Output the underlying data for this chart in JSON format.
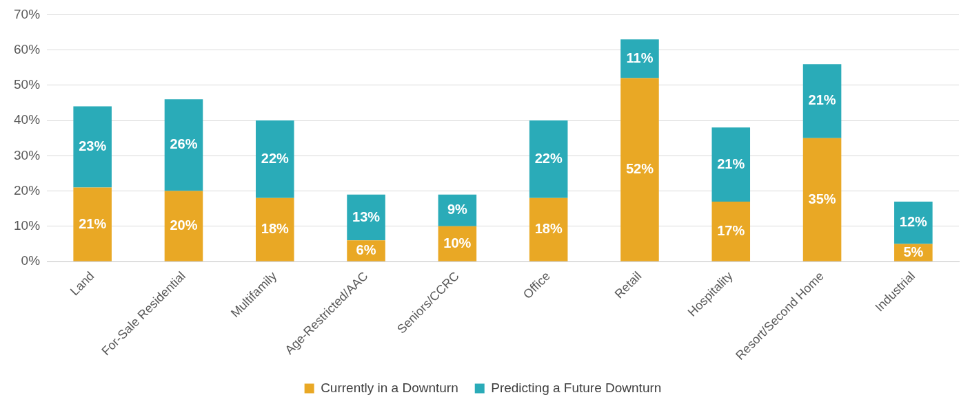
{
  "chart_data": {
    "type": "bar",
    "stacked": true,
    "grid": "y",
    "legend": "bottom",
    "categories": [
      "Land",
      "For-Sale Residential",
      "Multifamily",
      "Age-Restricted/AAC",
      "Seniors/CCRC",
      "Office",
      "Retail",
      "Hospitality",
      "Resort/Second Home",
      "Industrial"
    ],
    "series": [
      {
        "name": "Currently in a Downturn",
        "color": "#e9a825",
        "values": [
          21,
          20,
          18,
          6,
          10,
          18,
          52,
          17,
          35,
          5
        ],
        "value_labels": [
          "21%",
          "20%",
          "18%",
          "6%",
          "10%",
          "18%",
          "52%",
          "17%",
          "35%",
          "5%"
        ]
      },
      {
        "name": "Predicting a Future Downturn",
        "color": "#2aabb8",
        "values": [
          23,
          26,
          22,
          13,
          9,
          22,
          11,
          21,
          21,
          12
        ],
        "value_labels": [
          "23%",
          "26%",
          "22%",
          "13%",
          "9%",
          "22%",
          "11%",
          "21%",
          "21%",
          "12%"
        ]
      }
    ],
    "ylim": [
      0,
      70
    ],
    "yticks": [
      {
        "value": 0,
        "label": "0%"
      },
      {
        "value": 10,
        "label": "10%"
      },
      {
        "value": 20,
        "label": "20%"
      },
      {
        "value": 30,
        "label": "30%"
      },
      {
        "value": 40,
        "label": "40%"
      },
      {
        "value": 50,
        "label": "50%"
      },
      {
        "value": 60,
        "label": "60%"
      },
      {
        "value": 70,
        "label": "70%"
      }
    ]
  }
}
